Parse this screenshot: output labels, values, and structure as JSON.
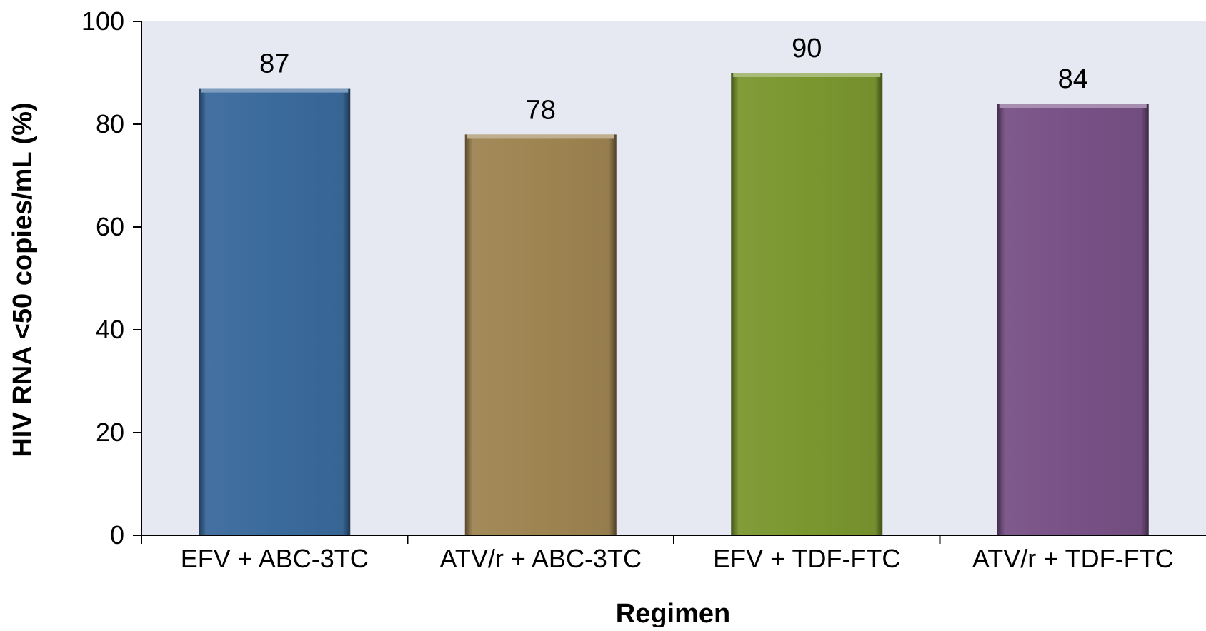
{
  "chart_data": {
    "type": "bar",
    "categories": [
      "EFV + ABC-3TC",
      "ATV/r + ABC-3TC",
      "EFV + TDF-FTC",
      "ATV/r + TDF-FTC"
    ],
    "values": [
      87,
      78,
      90,
      84
    ],
    "data_labels": [
      "87",
      "78",
      "90",
      "84"
    ],
    "xlabel": "Regimen",
    "ylabel": "HIV RNA <50 copies/mL (%)",
    "ylim": [
      0,
      100
    ],
    "yticks": [
      0,
      20,
      40,
      60,
      80,
      100
    ],
    "ytick_labels": [
      "0",
      "20",
      "40",
      "60",
      "80",
      "100"
    ],
    "grid": false,
    "colors": {
      "plot_background": "#e6e9f1",
      "bars": [
        "#3a6a9c",
        "#9e8451",
        "#7a972f",
        "#785186"
      ]
    }
  }
}
